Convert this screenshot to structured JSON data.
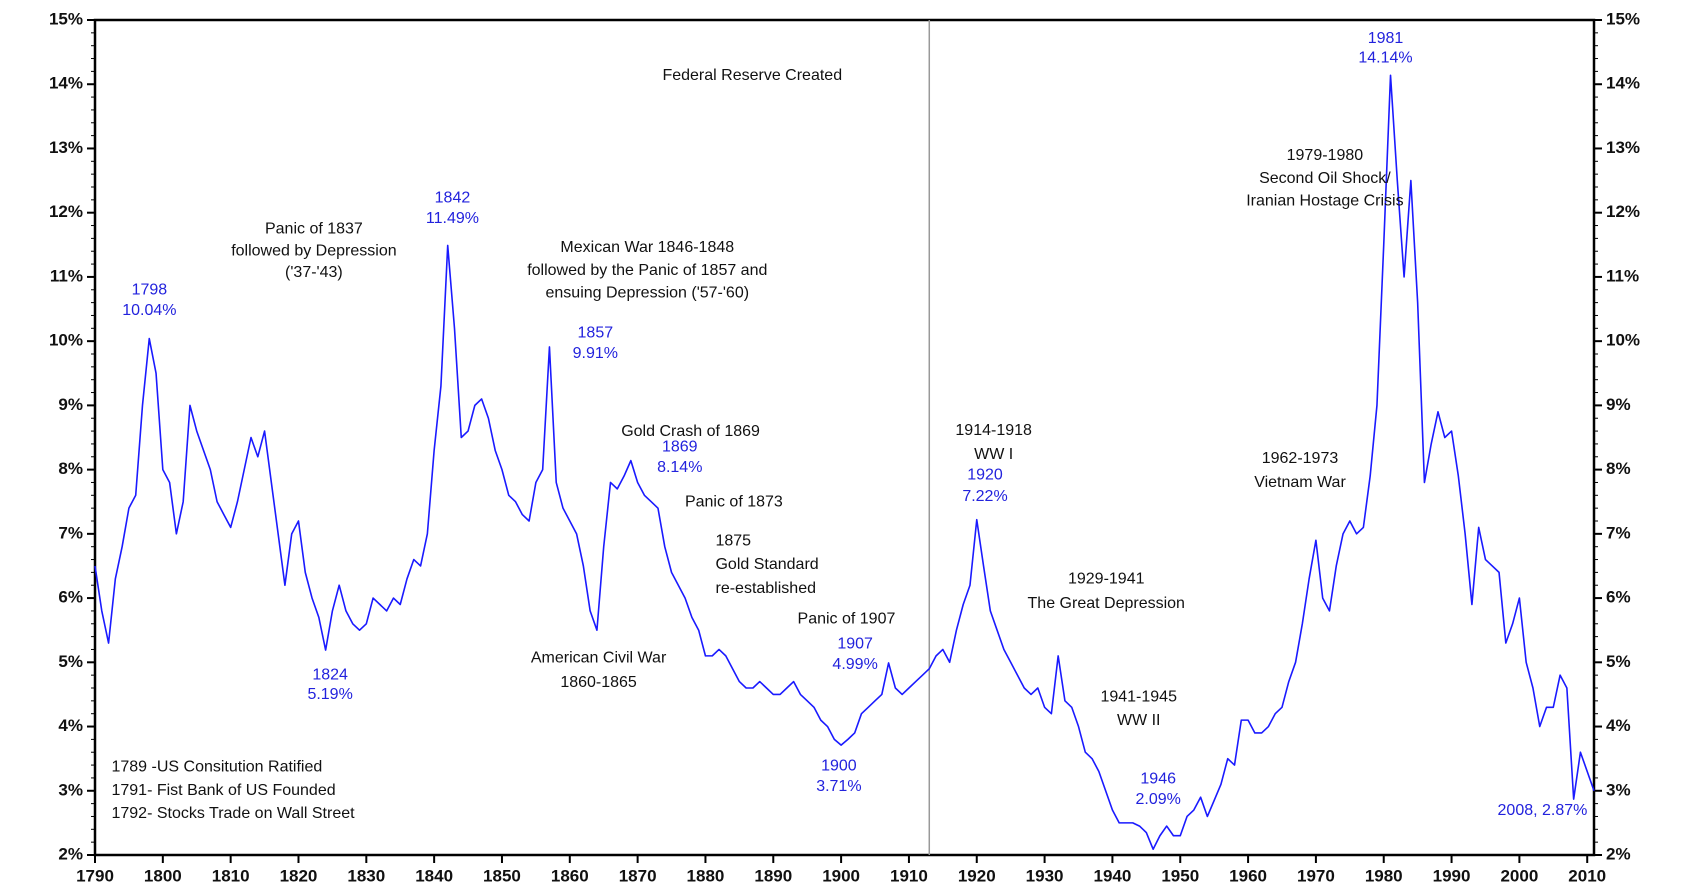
{
  "chart_data": {
    "type": "line",
    "x": [
      1790,
      1791,
      1792,
      1793,
      1794,
      1795,
      1796,
      1797,
      1798,
      1799,
      1800,
      1801,
      1802,
      1803,
      1804,
      1805,
      1806,
      1807,
      1808,
      1809,
      1810,
      1811,
      1812,
      1813,
      1814,
      1815,
      1816,
      1817,
      1818,
      1819,
      1820,
      1821,
      1822,
      1823,
      1824,
      1825,
      1826,
      1827,
      1828,
      1829,
      1830,
      1831,
      1832,
      1833,
      1834,
      1835,
      1836,
      1837,
      1838,
      1839,
      1840,
      1841,
      1842,
      1843,
      1844,
      1845,
      1846,
      1847,
      1848,
      1849,
      1850,
      1851,
      1852,
      1853,
      1854,
      1855,
      1856,
      1857,
      1858,
      1859,
      1860,
      1861,
      1862,
      1863,
      1864,
      1865,
      1866,
      1867,
      1868,
      1869,
      1870,
      1871,
      1872,
      1873,
      1874,
      1875,
      1876,
      1877,
      1878,
      1879,
      1880,
      1881,
      1882,
      1883,
      1884,
      1885,
      1886,
      1887,
      1888,
      1889,
      1890,
      1891,
      1892,
      1893,
      1894,
      1895,
      1896,
      1897,
      1898,
      1899,
      1900,
      1901,
      1902,
      1903,
      1904,
      1905,
      1906,
      1907,
      1908,
      1909,
      1910,
      1911,
      1912,
      1913,
      1914,
      1915,
      1916,
      1917,
      1918,
      1919,
      1920,
      1921,
      1922,
      1923,
      1924,
      1925,
      1926,
      1927,
      1928,
      1929,
      1930,
      1931,
      1932,
      1933,
      1934,
      1935,
      1936,
      1937,
      1938,
      1939,
      1940,
      1941,
      1942,
      1943,
      1944,
      1945,
      1946,
      1947,
      1948,
      1949,
      1950,
      1951,
      1952,
      1953,
      1954,
      1955,
      1956,
      1957,
      1958,
      1959,
      1960,
      1961,
      1962,
      1963,
      1964,
      1965,
      1966,
      1967,
      1968,
      1969,
      1970,
      1971,
      1972,
      1973,
      1974,
      1975,
      1976,
      1977,
      1978,
      1979,
      1980,
      1981,
      1982,
      1983,
      1984,
      1985,
      1986,
      1987,
      1988,
      1989,
      1990,
      1991,
      1992,
      1993,
      1994,
      1995,
      1996,
      1997,
      1998,
      1999,
      2000,
      2001,
      2002,
      2003,
      2004,
      2005,
      2006,
      2007,
      2008,
      2009,
      2010,
      2011
    ],
    "series": [
      {
        "color": "#1a1aff",
        "values": [
          6.5,
          5.8,
          5.3,
          6.3,
          6.8,
          7.4,
          7.6,
          9.0,
          10.04,
          9.5,
          8.0,
          7.8,
          7.0,
          7.5,
          9.0,
          8.6,
          8.3,
          8.0,
          7.5,
          7.3,
          7.1,
          7.5,
          8.0,
          8.5,
          8.2,
          8.6,
          7.8,
          7.0,
          6.2,
          7.0,
          7.2,
          6.4,
          6.0,
          5.7,
          5.19,
          5.8,
          6.2,
          5.8,
          5.6,
          5.5,
          5.6,
          6.0,
          5.9,
          5.8,
          6.0,
          5.9,
          6.3,
          6.6,
          6.5,
          7.0,
          8.3,
          9.3,
          11.49,
          10.2,
          8.5,
          8.6,
          9.0,
          9.1,
          8.8,
          8.3,
          8.0,
          7.6,
          7.5,
          7.3,
          7.2,
          7.8,
          8.0,
          9.91,
          7.8,
          7.4,
          7.2,
          7.0,
          6.5,
          5.8,
          5.5,
          6.8,
          7.8,
          7.7,
          7.9,
          8.14,
          7.8,
          7.6,
          7.5,
          7.4,
          6.8,
          6.4,
          6.2,
          6.0,
          5.7,
          5.5,
          5.1,
          5.1,
          5.2,
          5.1,
          4.9,
          4.7,
          4.6,
          4.6,
          4.7,
          4.6,
          4.5,
          4.5,
          4.6,
          4.7,
          4.5,
          4.4,
          4.3,
          4.1,
          4.0,
          3.8,
          3.71,
          3.8,
          3.9,
          4.2,
          4.3,
          4.4,
          4.5,
          4.99,
          4.6,
          4.5,
          4.6,
          4.7,
          4.8,
          4.9,
          5.1,
          5.2,
          5.0,
          5.5,
          5.9,
          6.2,
          7.22,
          6.5,
          5.8,
          5.5,
          5.2,
          5.0,
          4.8,
          4.6,
          4.5,
          4.6,
          4.3,
          4.2,
          5.1,
          4.4,
          4.3,
          4.0,
          3.6,
          3.5,
          3.3,
          3.0,
          2.7,
          2.5,
          2.5,
          2.5,
          2.45,
          2.35,
          2.09,
          2.3,
          2.45,
          2.3,
          2.3,
          2.6,
          2.7,
          2.9,
          2.6,
          2.85,
          3.1,
          3.5,
          3.4,
          4.1,
          4.1,
          3.9,
          3.9,
          4.0,
          4.2,
          4.3,
          4.7,
          5.0,
          5.6,
          6.3,
          6.9,
          6.0,
          5.8,
          6.5,
          7.0,
          7.2,
          7.0,
          7.1,
          7.9,
          9.0,
          11.5,
          14.14,
          12.5,
          11.0,
          12.5,
          10.6,
          7.8,
          8.4,
          8.9,
          8.5,
          8.6,
          7.9,
          7.0,
          5.9,
          7.1,
          6.6,
          6.5,
          6.4,
          5.3,
          5.6,
          6.0,
          5.0,
          4.6,
          4.0,
          4.3,
          4.3,
          4.8,
          4.6,
          2.87,
          3.6,
          3.3,
          3.0
        ]
      }
    ],
    "xlim": [
      1790,
      2011
    ],
    "xticks": [
      1790,
      1800,
      1810,
      1820,
      1830,
      1840,
      1850,
      1860,
      1870,
      1880,
      1890,
      1900,
      1910,
      1920,
      1930,
      1940,
      1950,
      1960,
      1970,
      1980,
      1990,
      2000,
      2010
    ],
    "ylim": [
      2,
      15
    ],
    "yticks": [
      {
        "value": 2,
        "label": "2%"
      },
      {
        "value": 3,
        "label": "3%"
      },
      {
        "value": 4,
        "label": "4%"
      },
      {
        "value": 5,
        "label": "5%"
      },
      {
        "value": 6,
        "label": "6%"
      },
      {
        "value": 7,
        "label": "7%"
      },
      {
        "value": 8,
        "label": "8%"
      },
      {
        "value": 9,
        "label": "9%"
      },
      {
        "value": 10,
        "label": "10%"
      },
      {
        "value": 11,
        "label": "11%"
      },
      {
        "value": 12,
        "label": "12%"
      },
      {
        "value": 13,
        "label": "13%"
      },
      {
        "value": 14,
        "label": "14%"
      },
      {
        "value": 15,
        "label": "15%"
      }
    ],
    "y2lim": [
      2,
      15
    ],
    "y2ticks": [
      {
        "value": 2,
        "label": "2%"
      },
      {
        "value": 3,
        "label": "3%"
      },
      {
        "value": 4,
        "label": "4%"
      },
      {
        "value": 5,
        "label": "5%"
      },
      {
        "value": 6,
        "label": "6%"
      },
      {
        "value": 7,
        "label": "7%"
      },
      {
        "value": 8,
        "label": "8%"
      },
      {
        "value": 9,
        "label": "9%"
      },
      {
        "value": 10,
        "label": "10%"
      },
      {
        "value": 11,
        "label": "11%"
      },
      {
        "value": 12,
        "label": "12%"
      },
      {
        "value": 13,
        "label": "13%"
      },
      {
        "value": 14,
        "label": "14%"
      },
      {
        "value": 15,
        "label": "15%"
      }
    ],
    "event_line": {
      "text": "Federal Reserve Created",
      "x": 1913,
      "color": "#999999"
    },
    "annotations": [
      {
        "lines": [
          "1798",
          "10.04%"
        ],
        "color": "#2222dd"
      },
      {
        "lines": [
          "Panic of 1837",
          "followed by Depression",
          "('37-'43)"
        ],
        "color": "#111111"
      },
      {
        "lines": [
          "1842",
          "11.49%"
        ],
        "color": "#2222dd"
      },
      {
        "lines": [
          "Mexican War 1846-1848",
          "followed by the Panic of 1857 and",
          "ensuing Depression ('57-'60)"
        ],
        "color": "#111111"
      },
      {
        "lines": [
          "1857",
          "9.91%"
        ],
        "color": "#2222dd"
      },
      {
        "lines": [
          "Gold Crash of 1869"
        ],
        "color": "#111111"
      },
      {
        "lines": [
          "1869",
          "8.14%"
        ],
        "color": "#2222dd"
      },
      {
        "lines": [
          "Panic of 1873"
        ],
        "color": "#111111"
      },
      {
        "lines": [
          "1875",
          "Gold Standard",
          "re-established"
        ],
        "color": "#111111"
      },
      {
        "lines": [
          "Panic of 1907"
        ],
        "color": "#111111"
      },
      {
        "lines": [
          "1907",
          "4.99%"
        ],
        "color": "#2222dd"
      },
      {
        "lines": [
          "American Civil War",
          "1860-1865"
        ],
        "color": "#111111"
      },
      {
        "lines": [
          "1824",
          "5.19%"
        ],
        "color": "#2222dd"
      },
      {
        "lines": [
          "1900",
          "3.71%"
        ],
        "color": "#2222dd"
      },
      {
        "lines": [
          "1914-1918",
          "WW I"
        ],
        "color": "#111111"
      },
      {
        "lines": [
          "1920",
          "7.22%"
        ],
        "color": "#2222dd"
      },
      {
        "lines": [
          "1929-1941",
          "The Great Depression"
        ],
        "color": "#111111"
      },
      {
        "lines": [
          "1941-1945",
          "WW II"
        ],
        "color": "#111111"
      },
      {
        "lines": [
          "1946",
          "2.09%"
        ],
        "color": "#2222dd"
      },
      {
        "lines": [
          "1962-1973",
          "Vietnam War"
        ],
        "color": "#111111"
      },
      {
        "lines": [
          "1981",
          "14.14%"
        ],
        "color": "#2222dd"
      },
      {
        "lines": [
          "1979-1980",
          "Second Oil Shock/",
          "Iranian Hostage Crisis"
        ],
        "color": "#111111"
      },
      {
        "lines": [
          "2008, 2.87%"
        ],
        "color": "#2222dd"
      },
      {
        "lines": [
          "1789 -US Consitution Ratified",
          "1791- Fist Bank of US Founded",
          "1792- Stocks Trade on Wall Street"
        ],
        "color": "#111111"
      }
    ]
  }
}
